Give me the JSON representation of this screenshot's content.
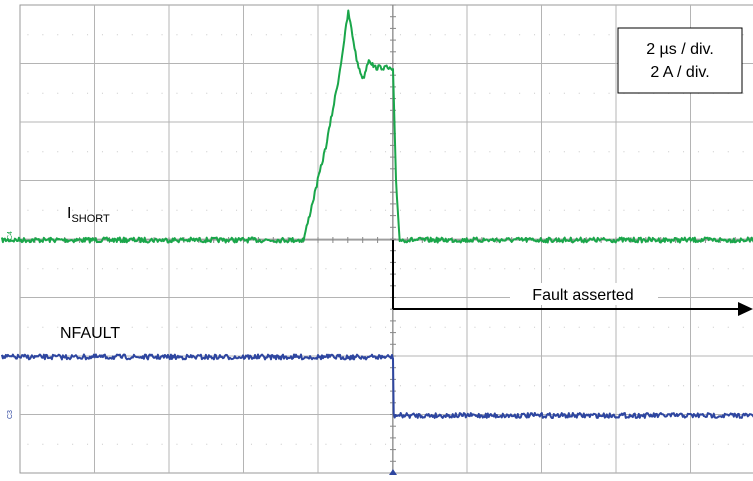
{
  "chart_data": {
    "type": "line",
    "scale_box": {
      "time_scale": "2 µs / div.",
      "amp_scale": "2 A / div."
    },
    "divisions": {
      "x": 10,
      "y": 8
    },
    "x_unit": "µs",
    "trigger_time": 0,
    "channel_markers": {
      "c4": "C4",
      "c3": "C3"
    },
    "series": [
      {
        "name_main": "I",
        "name_sub": "SHORT",
        "color": "#1aa64a",
        "baseline_div": 0.0,
        "points": [
          [
            -10.5,
            0.0
          ],
          [
            -2.4,
            0.0
          ],
          [
            -1.8,
            1.6
          ],
          [
            -1.45,
            2.8
          ],
          [
            -1.2,
            3.9
          ],
          [
            -0.95,
            3.0
          ],
          [
            -0.8,
            2.75
          ],
          [
            -0.65,
            3.1
          ],
          [
            -0.5,
            2.95
          ],
          [
            -0.2,
            2.95
          ],
          [
            0.0,
            2.9
          ],
          [
            0.08,
            1.0
          ],
          [
            0.18,
            0.0
          ],
          [
            9.9,
            0.0
          ]
        ]
      },
      {
        "name": "NFAULT",
        "color": "#2e46a0",
        "baseline_div": -2.0,
        "points": [
          [
            -10.5,
            -2.0
          ],
          [
            0.0,
            -2.0
          ],
          [
            0.02,
            -3.0
          ],
          [
            9.9,
            -3.0
          ]
        ]
      }
    ],
    "annotation": {
      "text": "Fault asserted",
      "from_time": 0.0,
      "to_time": 9.9
    }
  }
}
